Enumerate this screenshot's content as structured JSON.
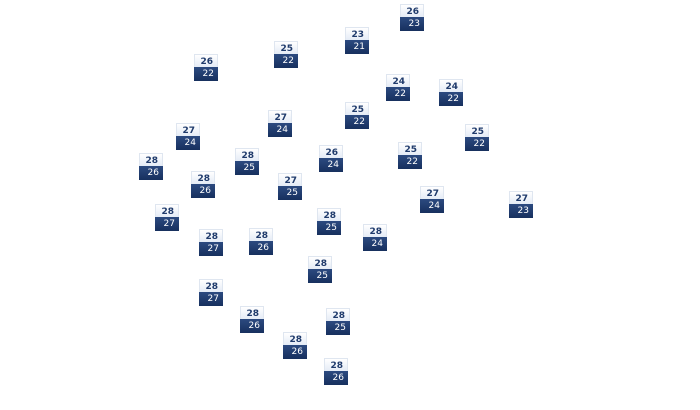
{
  "colors": {
    "high_bg": "#eef2f9",
    "high_text": "#1f3a6b",
    "low_bg": "#1f3a6b",
    "low_text": "#ffffff"
  },
  "markers": [
    {
      "high": "26",
      "low": "23"
    },
    {
      "high": "23",
      "low": "21"
    },
    {
      "high": "25",
      "low": "22"
    },
    {
      "high": "26",
      "low": "22"
    },
    {
      "high": "24",
      "low": "22"
    },
    {
      "high": "24",
      "low": "22"
    },
    {
      "high": "25",
      "low": "22"
    },
    {
      "high": "27",
      "low": "24"
    },
    {
      "high": "25",
      "low": "22"
    },
    {
      "high": "27",
      "low": "24"
    },
    {
      "high": "26",
      "low": "24"
    },
    {
      "high": "25",
      "low": "22"
    },
    {
      "high": "28",
      "low": "25"
    },
    {
      "high": "28",
      "low": "26"
    },
    {
      "high": "28",
      "low": "26"
    },
    {
      "high": "27",
      "low": "25"
    },
    {
      "high": "27",
      "low": "24"
    },
    {
      "high": "27",
      "low": "23"
    },
    {
      "high": "28",
      "low": "27"
    },
    {
      "high": "28",
      "low": "25"
    },
    {
      "high": "28",
      "low": "24"
    },
    {
      "high": "28",
      "low": "27"
    },
    {
      "high": "28",
      "low": "26"
    },
    {
      "high": "28",
      "low": "25"
    },
    {
      "high": "28",
      "low": "27"
    },
    {
      "high": "28",
      "low": "26"
    },
    {
      "high": "28",
      "low": "25"
    },
    {
      "high": "28",
      "low": "26"
    },
    {
      "high": "28",
      "low": "26"
    }
  ]
}
